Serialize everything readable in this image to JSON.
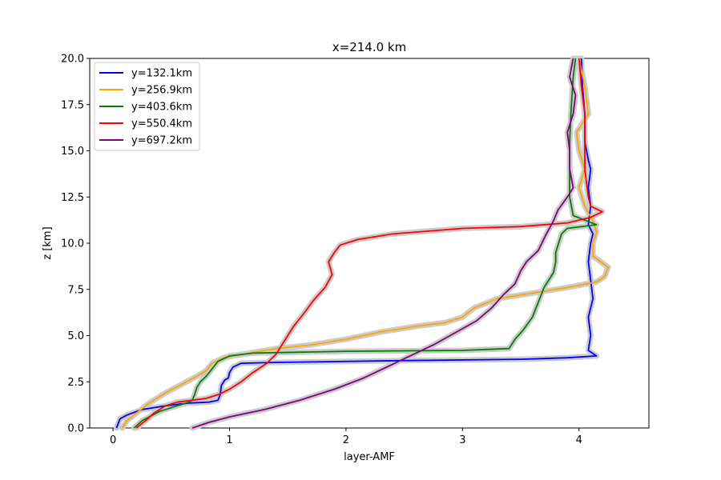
{
  "chart_data": {
    "type": "line",
    "title": "x=214.0 km",
    "xlabel": "layer-AMF",
    "ylabel": "z [km]",
    "xlim": [
      -0.2,
      4.6
    ],
    "ylim": [
      0,
      20
    ],
    "xticks": [
      0,
      1,
      2,
      3,
      4
    ],
    "xtick_labels": [
      "0",
      "1",
      "2",
      "3",
      "4"
    ],
    "yticks": [
      0,
      2.5,
      5,
      7.5,
      10,
      12.5,
      15,
      17.5,
      20
    ],
    "ytick_labels": [
      "0.0",
      "2.5",
      "5.0",
      "7.5",
      "10.0",
      "12.5",
      "15.0",
      "17.5",
      "20.0"
    ],
    "grid": false,
    "legend_position": "top-left",
    "uncertainty_band_color": "#cccccc",
    "series": [
      {
        "name": "y=132.1km",
        "color": "#0000ff",
        "points": [
          [
            0.03,
            0
          ],
          [
            0.06,
            0.5
          ],
          [
            0.12,
            0.7
          ],
          [
            0.25,
            1.0
          ],
          [
            0.45,
            1.2
          ],
          [
            0.65,
            1.35
          ],
          [
            0.82,
            1.4
          ],
          [
            0.9,
            1.5
          ],
          [
            0.92,
            1.8
          ],
          [
            0.93,
            2.3
          ],
          [
            0.96,
            2.6
          ],
          [
            0.99,
            2.7
          ],
          [
            1.0,
            3.0
          ],
          [
            1.03,
            3.3
          ],
          [
            1.1,
            3.5
          ],
          [
            1.4,
            3.55
          ],
          [
            2.5,
            3.65
          ],
          [
            3.5,
            3.72
          ],
          [
            3.9,
            3.8
          ],
          [
            4.15,
            3.9
          ],
          [
            4.08,
            4.2
          ],
          [
            4.1,
            5.0
          ],
          [
            4.08,
            6.0
          ],
          [
            4.12,
            7.0
          ],
          [
            4.1,
            8.0
          ],
          [
            4.08,
            9.0
          ],
          [
            4.1,
            10.0
          ],
          [
            4.12,
            10.5
          ],
          [
            4.08,
            11.0
          ],
          [
            4.1,
            12.0
          ],
          [
            4.08,
            13.0
          ],
          [
            4.1,
            14.0
          ],
          [
            4.08,
            14.5
          ],
          [
            4.05,
            15.5
          ],
          [
            4.05,
            17.0
          ],
          [
            4.03,
            18.5
          ],
          [
            4.02,
            20.0
          ]
        ]
      },
      {
        "name": "y=256.9km",
        "color": "#ffa500",
        "points": [
          [
            0.08,
            0
          ],
          [
            0.12,
            0.4
          ],
          [
            0.2,
            0.8
          ],
          [
            0.3,
            1.3
          ],
          [
            0.45,
            1.9
          ],
          [
            0.6,
            2.4
          ],
          [
            0.72,
            2.8
          ],
          [
            0.8,
            3.1
          ],
          [
            0.85,
            3.5
          ],
          [
            0.95,
            3.8
          ],
          [
            1.12,
            4.0
          ],
          [
            1.4,
            4.3
          ],
          [
            1.7,
            4.5
          ],
          [
            2.0,
            4.8
          ],
          [
            2.3,
            5.2
          ],
          [
            2.6,
            5.5
          ],
          [
            2.85,
            5.7
          ],
          [
            3.0,
            6.0
          ],
          [
            3.1,
            6.5
          ],
          [
            3.3,
            7.0
          ],
          [
            3.6,
            7.3
          ],
          [
            3.9,
            7.6
          ],
          [
            4.15,
            7.9
          ],
          [
            4.22,
            8.2
          ],
          [
            4.25,
            8.7
          ],
          [
            4.12,
            9.3
          ],
          [
            4.12,
            10.0
          ],
          [
            4.15,
            10.6
          ],
          [
            4.12,
            11.2
          ],
          [
            4.05,
            12.0
          ],
          [
            4.0,
            13.0
          ],
          [
            4.05,
            14.0
          ],
          [
            4.0,
            15.0
          ],
          [
            3.98,
            16.0
          ],
          [
            4.08,
            17.0
          ],
          [
            4.05,
            18.5
          ],
          [
            4.0,
            20.0
          ]
        ]
      },
      {
        "name": "y=403.6km",
        "color": "#008000",
        "points": [
          [
            0.18,
            0
          ],
          [
            0.25,
            0.4
          ],
          [
            0.4,
            0.9
          ],
          [
            0.55,
            1.2
          ],
          [
            0.65,
            1.4
          ],
          [
            0.68,
            1.5
          ],
          [
            0.7,
            1.8
          ],
          [
            0.72,
            2.2
          ],
          [
            0.75,
            2.5
          ],
          [
            0.8,
            2.8
          ],
          [
            0.85,
            3.2
          ],
          [
            0.9,
            3.6
          ],
          [
            1.0,
            3.9
          ],
          [
            1.2,
            4.05
          ],
          [
            2.0,
            4.15
          ],
          [
            3.0,
            4.2
          ],
          [
            3.4,
            4.3
          ],
          [
            3.45,
            4.8
          ],
          [
            3.52,
            5.3
          ],
          [
            3.6,
            6.0
          ],
          [
            3.65,
            6.8
          ],
          [
            3.7,
            7.6
          ],
          [
            3.78,
            8.4
          ],
          [
            3.8,
            9.0
          ],
          [
            3.8,
            9.5
          ],
          [
            3.85,
            10.5
          ],
          [
            3.9,
            10.8
          ],
          [
            4.15,
            11.0
          ],
          [
            3.95,
            11.5
          ],
          [
            3.92,
            12.5
          ],
          [
            3.92,
            14.0
          ],
          [
            3.92,
            15.5
          ],
          [
            3.93,
            17.0
          ],
          [
            3.95,
            19.0
          ],
          [
            3.97,
            20.0
          ]
        ]
      },
      {
        "name": "y=550.4km",
        "color": "#ff0000",
        "points": [
          [
            0.2,
            0
          ],
          [
            0.28,
            0.4
          ],
          [
            0.35,
            0.8
          ],
          [
            0.45,
            1.2
          ],
          [
            0.55,
            1.4
          ],
          [
            0.8,
            1.6
          ],
          [
            0.9,
            1.8
          ],
          [
            1.0,
            2.1
          ],
          [
            1.1,
            2.5
          ],
          [
            1.2,
            3.0
          ],
          [
            1.32,
            3.5
          ],
          [
            1.4,
            4.0
          ],
          [
            1.45,
            4.5
          ],
          [
            1.5,
            5.0
          ],
          [
            1.55,
            5.5
          ],
          [
            1.65,
            6.3
          ],
          [
            1.72,
            6.9
          ],
          [
            1.82,
            7.6
          ],
          [
            1.88,
            8.3
          ],
          [
            1.85,
            9.0
          ],
          [
            1.9,
            9.5
          ],
          [
            1.95,
            9.9
          ],
          [
            2.1,
            10.2
          ],
          [
            2.4,
            10.5
          ],
          [
            3.0,
            10.8
          ],
          [
            3.5,
            10.9
          ],
          [
            3.9,
            11.1
          ],
          [
            4.1,
            11.4
          ],
          [
            4.2,
            11.7
          ],
          [
            4.1,
            12.0
          ],
          [
            4.08,
            12.5
          ],
          [
            4.05,
            14.0
          ],
          [
            4.05,
            15.5
          ],
          [
            4.05,
            17.0
          ],
          [
            4.02,
            18.5
          ],
          [
            4.0,
            20.0
          ]
        ]
      },
      {
        "name": "y=697.2km",
        "color": "#800080",
        "points": [
          [
            0.68,
            0
          ],
          [
            0.82,
            0.3
          ],
          [
            1.0,
            0.6
          ],
          [
            1.3,
            1.0
          ],
          [
            1.6,
            1.5
          ],
          [
            1.9,
            2.1
          ],
          [
            2.15,
            2.7
          ],
          [
            2.35,
            3.3
          ],
          [
            2.55,
            3.9
          ],
          [
            2.75,
            4.5
          ],
          [
            2.95,
            5.2
          ],
          [
            3.12,
            5.8
          ],
          [
            3.25,
            6.5
          ],
          [
            3.35,
            7.2
          ],
          [
            3.45,
            7.8
          ],
          [
            3.5,
            8.5
          ],
          [
            3.55,
            9.0
          ],
          [
            3.65,
            9.6
          ],
          [
            3.72,
            10.5
          ],
          [
            3.78,
            11.2
          ],
          [
            3.82,
            11.8
          ],
          [
            3.9,
            12.5
          ],
          [
            3.95,
            13.0
          ],
          [
            3.92,
            14.0
          ],
          [
            3.92,
            15.0
          ],
          [
            3.9,
            16.0
          ],
          [
            3.95,
            17.0
          ],
          [
            3.97,
            18.0
          ],
          [
            3.92,
            19.0
          ],
          [
            3.95,
            20.0
          ]
        ]
      }
    ]
  }
}
